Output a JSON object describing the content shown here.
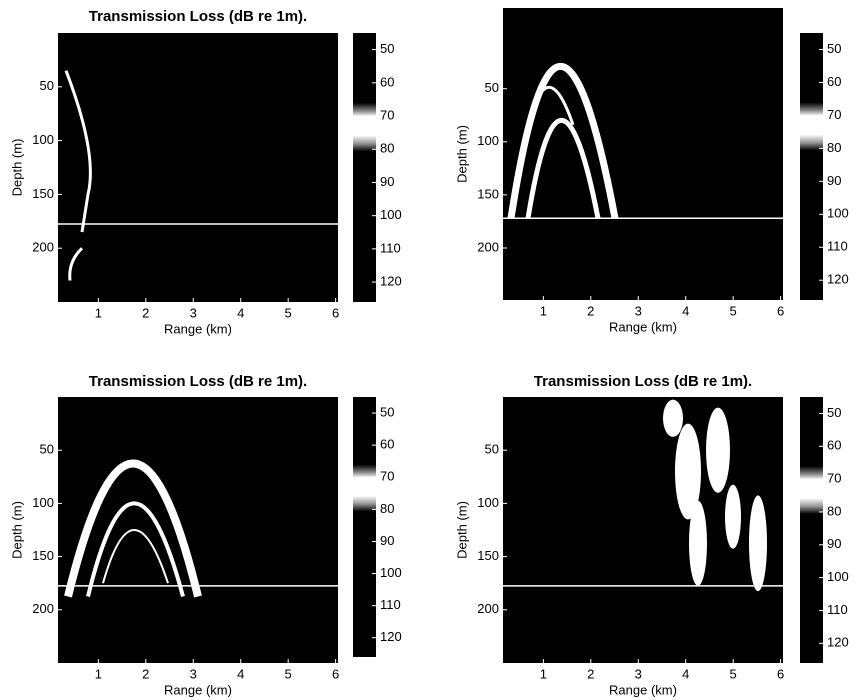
{
  "chart_data": [
    {
      "type": "heatmap",
      "title": "Transmission Loss (dB re 1m).",
      "x_label": "Range (km)",
      "y_label": "Depth (m)",
      "xlim": [
        0.15,
        6.05
      ],
      "xticks": [
        1,
        2,
        3,
        4,
        5,
        6
      ],
      "ylim": [
        0,
        250
      ],
      "yticks": [
        50,
        100,
        150,
        200
      ],
      "clim": [
        45,
        126
      ],
      "cticks": [
        50,
        60,
        70,
        80,
        90,
        100,
        110,
        120
      ]
    },
    {
      "type": "heatmap",
      "title": "Transmission Loss (dB re 1m).",
      "x_label": "Range (km)",
      "y_label": "Depth (m)",
      "xlim": [
        0.15,
        6.05
      ],
      "xticks": [
        1,
        2,
        3,
        4,
        5,
        6
      ],
      "ylim": [
        -26,
        249
      ],
      "yticks": [
        50,
        100,
        150,
        200
      ],
      "clim": [
        45,
        126
      ],
      "cticks": [
        50,
        60,
        70,
        80,
        90,
        100,
        110,
        120
      ]
    },
    {
      "type": "heatmap",
      "title": "Transmission Loss (dB re 1m).",
      "x_label": "Range (km)",
      "y_label": "Depth (m)",
      "xlim": [
        0.15,
        6.05
      ],
      "xticks": [
        1,
        2,
        3,
        4,
        5,
        6
      ],
      "ylim": [
        0,
        250
      ],
      "yticks": [
        50,
        100,
        150,
        200
      ],
      "clim": [
        45,
        126
      ],
      "cticks": [
        50,
        60,
        70,
        80,
        90,
        100,
        110,
        120
      ]
    },
    {
      "type": "heatmap",
      "title": "Transmission Loss (dB re 1m).",
      "x_label": "Range (km)",
      "y_label": "Depth (m)",
      "xlim": [
        0.15,
        6.05
      ],
      "xticks": [
        1,
        2,
        3,
        4,
        5,
        6
      ],
      "ylim": [
        0,
        250
      ],
      "yticks": [
        50,
        100,
        150,
        200
      ],
      "clim": [
        45,
        126
      ],
      "cticks": [
        50,
        60,
        70,
        80,
        90,
        100,
        110,
        120
      ]
    }
  ]
}
